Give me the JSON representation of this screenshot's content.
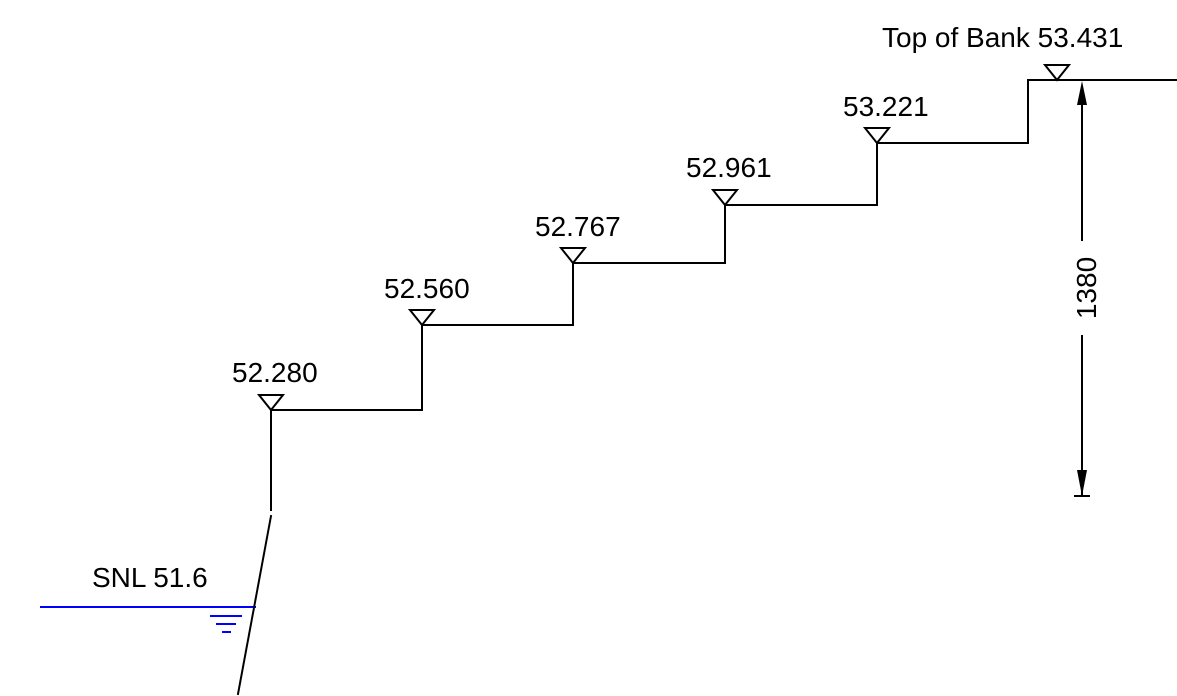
{
  "drawing": {
    "top_of_bank_label": "Top of Bank 53.431",
    "water_level_label": "SNL 51.6",
    "dimension_label": "1380",
    "steps": [
      {
        "label": "52.280"
      },
      {
        "label": "52.560"
      },
      {
        "label": "52.767"
      },
      {
        "label": "52.961"
      },
      {
        "label": "53.221"
      }
    ],
    "colors": {
      "lines": "#000000",
      "water": "#0000ff",
      "background": "#ffffff"
    }
  }
}
